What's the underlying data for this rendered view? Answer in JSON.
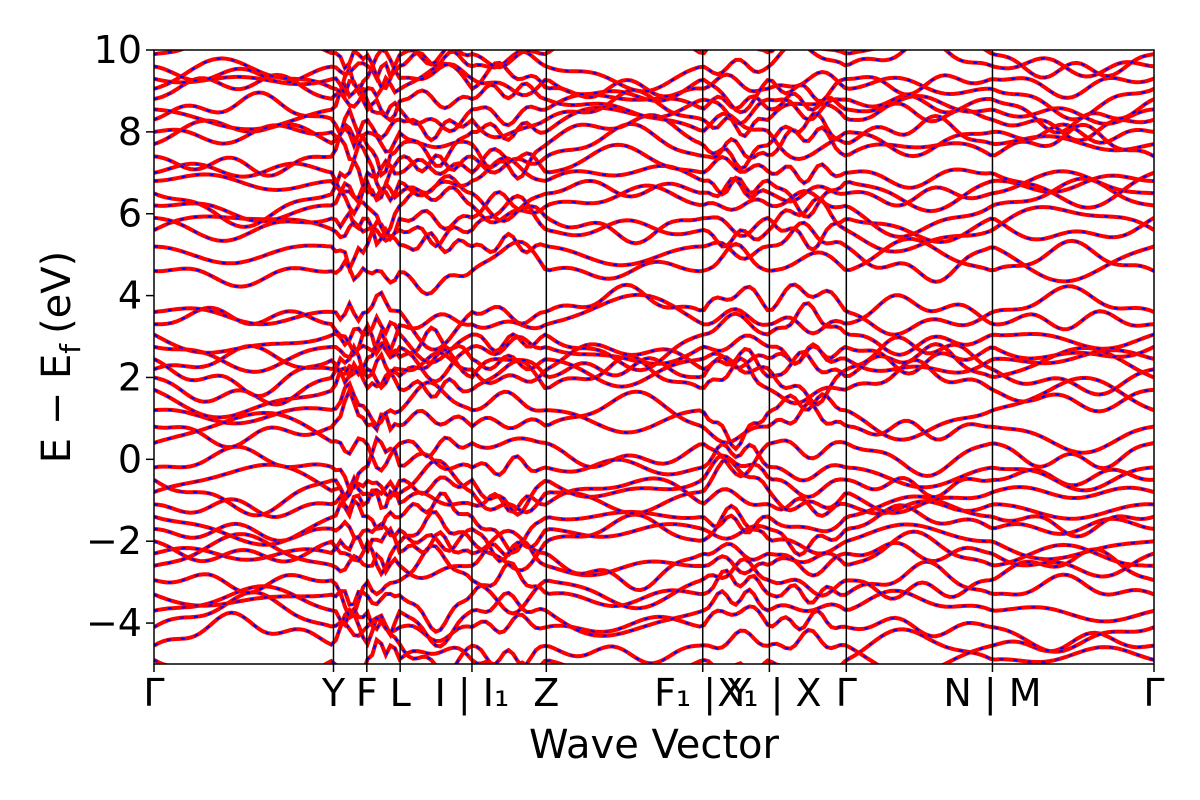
{
  "chart_data": {
    "type": "line",
    "title": "",
    "xlabel": "Wave Vector",
    "ylabel": "E − E_f (eV)",
    "ylabel_main": "E − E",
    "ylabel_sub": "f",
    "ylabel_unit": "(eV)",
    "ylim": [
      -5,
      10
    ],
    "yticks": [
      "−4",
      "−2",
      "0",
      "2",
      "4",
      "6",
      "8",
      "10"
    ],
    "ytick_values": [
      -4,
      -2,
      0,
      2,
      4,
      6,
      8,
      10
    ],
    "grid": false,
    "legend": "none",
    "kpath": {
      "segments": [
        [
          "Γ",
          "Y"
        ],
        [
          "Y",
          "F"
        ],
        [
          "F",
          "L"
        ],
        [
          "L",
          "I"
        ],
        [
          "I₁",
          "Z"
        ],
        [
          "Z",
          "F₁"
        ],
        [
          "Y",
          "X₁"
        ],
        [
          "X",
          "Γ"
        ],
        [
          "Γ",
          "N"
        ],
        [
          "M",
          "Γ"
        ]
      ],
      "segment_lengths": [
        3.5,
        0.65,
        0.65,
        1.4,
        1.45,
        3.05,
        1.3,
        1.5,
        2.85,
        3.15
      ]
    },
    "xtick_labels": [
      "Γ",
      "Y",
      "F",
      "L",
      "I | I₁",
      "Z",
      "F₁ | Y",
      "X₁ | X",
      "Γ",
      "N | M",
      "Γ"
    ],
    "series_colors": {
      "primary": "#ff0000",
      "overlay": "#0000ff"
    },
    "bands": {
      "valence_ref": [
        -4.9,
        -4.55,
        -4.1,
        -3.7,
        -3.3,
        -2.95,
        -2.6,
        -2.3,
        -2.0,
        -1.7,
        -1.4,
        -1.1,
        -0.8,
        -0.5,
        -0.2
      ],
      "mid_ref": [
        0.4,
        0.8,
        1.2,
        1.7,
        2.0,
        2.2,
        2.45,
        2.75,
        3.05,
        3.3,
        3.6
      ],
      "conduction_ref": [
        4.6,
        5.2,
        5.6,
        5.9,
        6.2,
        6.5,
        6.8,
        7.0,
        7.4,
        7.7,
        8.0,
        8.3,
        8.55,
        8.8,
        9.05,
        9.3,
        9.6,
        9.9
      ]
    }
  }
}
